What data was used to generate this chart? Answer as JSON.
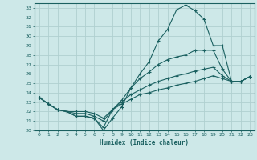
{
  "xlabel": "Humidex (Indice chaleur)",
  "xlim": [
    -0.5,
    23.5
  ],
  "ylim": [
    20,
    33.5
  ],
  "yticks": [
    20,
    21,
    22,
    23,
    24,
    25,
    26,
    27,
    28,
    29,
    30,
    31,
    32,
    33
  ],
  "xticks": [
    0,
    1,
    2,
    3,
    4,
    5,
    6,
    7,
    8,
    9,
    10,
    11,
    12,
    13,
    14,
    15,
    16,
    17,
    18,
    19,
    20,
    21,
    22,
    23
  ],
  "background_color": "#cde8e8",
  "grid_color": "#b0d0d0",
  "line_color": "#1a6060",
  "line1_x": [
    0,
    1,
    2,
    3,
    4,
    5,
    6,
    7,
    8,
    9,
    10,
    11,
    12,
    13,
    14,
    15,
    16,
    17,
    18,
    19,
    20,
    21,
    22,
    23
  ],
  "line1_y": [
    23.5,
    22.8,
    22.2,
    22.0,
    21.5,
    21.5,
    21.3,
    20.0,
    21.3,
    22.5,
    24.5,
    26.0,
    27.3,
    29.5,
    30.7,
    32.8,
    33.3,
    32.7,
    31.8,
    29.0,
    29.0,
    25.2,
    25.2,
    25.7
  ],
  "line2_x": [
    0,
    1,
    2,
    3,
    4,
    5,
    6,
    7,
    8,
    9,
    10,
    11,
    12,
    13,
    14,
    15,
    16,
    17,
    18,
    19,
    20,
    21,
    22,
    23
  ],
  "line2_y": [
    23.5,
    22.8,
    22.2,
    22.0,
    21.5,
    21.5,
    21.3,
    20.3,
    22.2,
    23.2,
    24.5,
    25.5,
    26.2,
    27.0,
    27.5,
    27.8,
    28.0,
    28.5,
    28.5,
    28.5,
    26.5,
    25.2,
    25.2,
    25.7
  ],
  "line3_x": [
    0,
    1,
    2,
    3,
    4,
    5,
    6,
    7,
    8,
    9,
    10,
    11,
    12,
    13,
    14,
    15,
    16,
    17,
    18,
    19,
    20,
    21,
    22,
    23
  ],
  "line3_y": [
    23.5,
    22.8,
    22.2,
    22.0,
    21.8,
    21.8,
    21.5,
    21.0,
    22.2,
    23.0,
    23.8,
    24.3,
    24.8,
    25.2,
    25.5,
    25.8,
    26.0,
    26.3,
    26.5,
    26.7,
    25.8,
    25.2,
    25.2,
    25.7
  ],
  "line4_x": [
    0,
    1,
    2,
    3,
    4,
    5,
    6,
    7,
    8,
    9,
    10,
    11,
    12,
    13,
    14,
    15,
    16,
    17,
    18,
    19,
    20,
    21,
    22,
    23
  ],
  "line4_y": [
    23.5,
    22.8,
    22.2,
    22.0,
    22.0,
    22.0,
    21.8,
    21.3,
    22.2,
    22.8,
    23.3,
    23.8,
    24.0,
    24.3,
    24.5,
    24.8,
    25.0,
    25.2,
    25.5,
    25.8,
    25.5,
    25.2,
    25.2,
    25.7
  ]
}
